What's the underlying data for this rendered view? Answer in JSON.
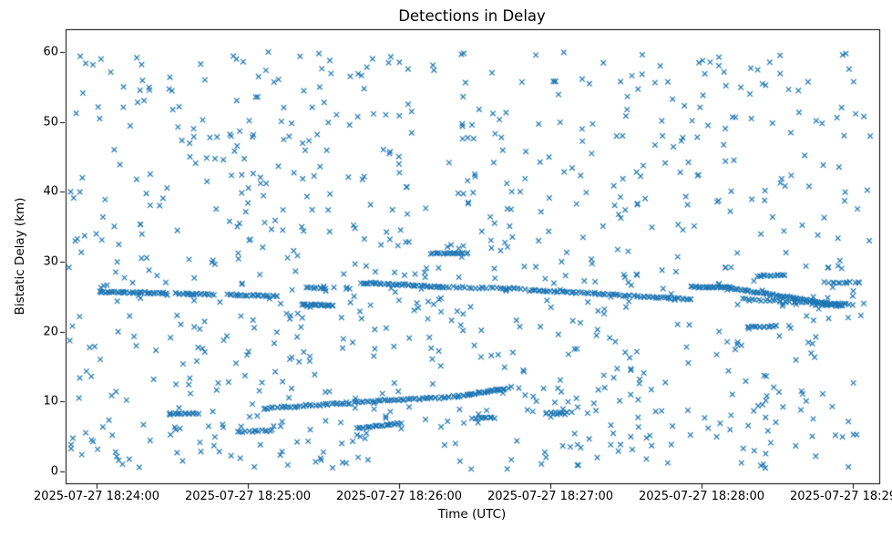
{
  "chart_data": {
    "type": "scatter",
    "title": "Detections in Delay",
    "xlabel": "Time (UTC)",
    "ylabel": "Bistatic Delay (km)",
    "marker": "x",
    "marker_color": "#1f77b4",
    "background_color": "#ffffff",
    "axis_color": "#000000",
    "x_tick_labels": [
      "2025-07-27 18:24:00",
      "2025-07-27 18:25:00",
      "2025-07-27 18:26:00",
      "2025-07-27 18:27:00",
      "2025-07-27 18:28:00",
      "2025-07-27 18:29:00"
    ],
    "y_tick_labels": [
      "0",
      "10",
      "20",
      "30",
      "40",
      "50",
      "60"
    ],
    "x_tick_seconds": [
      0,
      60,
      120,
      180,
      240,
      300
    ],
    "ylim": [
      -1.7,
      63.2
    ],
    "xlim_seconds": [
      -12,
      308
    ],
    "legend": "none",
    "grid": false,
    "noise_scatter": {
      "comment": "uniform random detections filling the plot",
      "count": 900,
      "seed": 1337,
      "t_min": -11,
      "t_max": 307,
      "y_min": 0.3,
      "y_max": 60.0
    },
    "tracks": [
      {
        "t0": 1,
        "t1": 28,
        "y0": 25.7,
        "y1": 25.5,
        "n": 40,
        "jitter": 0.12
      },
      {
        "t0": 31,
        "t1": 46,
        "y0": 25.5,
        "y1": 25.3,
        "n": 22,
        "jitter": 0.12
      },
      {
        "t0": 52,
        "t1": 72,
        "y0": 25.3,
        "y1": 25.1,
        "n": 26,
        "jitter": 0.12
      },
      {
        "t0": 29,
        "t1": 40,
        "y0": 8.3,
        "y1": 8.3,
        "n": 16,
        "jitter": 0.1
      },
      {
        "t0": 56,
        "t1": 70,
        "y0": 5.6,
        "y1": 5.9,
        "n": 14,
        "jitter": 0.12
      },
      {
        "t0": 66,
        "t1": 100,
        "y0": 9.0,
        "y1": 9.8,
        "n": 40,
        "jitter": 0.14
      },
      {
        "t0": 102,
        "t1": 140,
        "y0": 9.9,
        "y1": 10.6,
        "n": 46,
        "jitter": 0.14
      },
      {
        "t0": 142,
        "t1": 163,
        "y0": 10.7,
        "y1": 11.9,
        "n": 34,
        "jitter": 0.14
      },
      {
        "t0": 81,
        "t1": 94,
        "y0": 23.9,
        "y1": 23.7,
        "n": 22,
        "jitter": 0.1
      },
      {
        "t0": 83,
        "t1": 91,
        "y0": 26.3,
        "y1": 26.2,
        "n": 10,
        "jitter": 0.1
      },
      {
        "t0": 105,
        "t1": 138,
        "y0": 27.0,
        "y1": 26.4,
        "n": 48,
        "jitter": 0.12
      },
      {
        "t0": 139,
        "t1": 170,
        "y0": 26.4,
        "y1": 26.1,
        "n": 26,
        "jitter": 0.12
      },
      {
        "t0": 133,
        "t1": 147,
        "y0": 31.2,
        "y1": 31.2,
        "n": 20,
        "jitter": 0.1
      },
      {
        "t0": 103,
        "t1": 121,
        "y0": 6.2,
        "y1": 6.9,
        "n": 26,
        "jitter": 0.12
      },
      {
        "t0": 149,
        "t1": 158,
        "y0": 7.6,
        "y1": 7.7,
        "n": 12,
        "jitter": 0.1
      },
      {
        "t0": 172,
        "t1": 207,
        "y0": 25.9,
        "y1": 25.3,
        "n": 44,
        "jitter": 0.12
      },
      {
        "t0": 208,
        "t1": 236,
        "y0": 25.2,
        "y1": 24.6,
        "n": 36,
        "jitter": 0.12
      },
      {
        "t0": 178,
        "t1": 188,
        "y0": 8.3,
        "y1": 8.4,
        "n": 12,
        "jitter": 0.1
      },
      {
        "t0": 236,
        "t1": 252,
        "y0": 26.4,
        "y1": 26.3,
        "n": 30,
        "jitter": 0.1
      },
      {
        "t0": 252,
        "t1": 296,
        "y0": 26.2,
        "y1": 23.7,
        "n": 70,
        "jitter": 0.12
      },
      {
        "t0": 256,
        "t1": 300,
        "y0": 24.6,
        "y1": 23.9,
        "n": 40,
        "jitter": 0.15
      },
      {
        "t0": 258,
        "t1": 270,
        "y0": 20.6,
        "y1": 20.8,
        "n": 16,
        "jitter": 0.1
      },
      {
        "t0": 262,
        "t1": 273,
        "y0": 28.0,
        "y1": 28.1,
        "n": 14,
        "jitter": 0.1
      },
      {
        "t0": 289,
        "t1": 303,
        "y0": 27.0,
        "y1": 27.1,
        "n": 12,
        "jitter": 0.1
      },
      {
        "t0": 284,
        "t1": 295,
        "y0": 23.8,
        "y1": 23.8,
        "n": 10,
        "jitter": 0.1
      }
    ]
  }
}
